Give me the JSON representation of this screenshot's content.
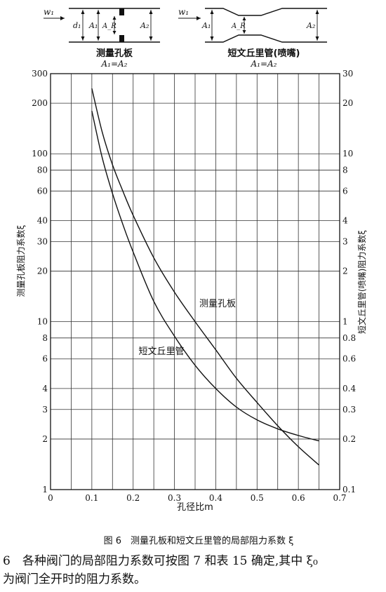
{
  "header": {
    "left_diagram": {
      "flow_label": "w₁",
      "d_label": "d₁",
      "a1_label": "A₁",
      "ar_label": "A_R",
      "a2_label": "A₂",
      "name": "测量孔板",
      "equation": "A₁=A₂"
    },
    "right_diagram": {
      "flow_label": "w₁",
      "a1_label": "A₁",
      "ar_label": "A_R",
      "a2_label": "A₂",
      "name": "短文丘里管(喷嘴)",
      "equation": "A₁=A₂"
    }
  },
  "chart_data": {
    "type": "line",
    "xlabel": "孔径比m",
    "ylabel_left": "测量孔板阻力系数ξ",
    "ylabel_right": "短文丘里管(喷嘴)阻力系数ξ",
    "x_scale": "linear",
    "y_scale": "log",
    "xlim": [
      0,
      0.7
    ],
    "ylim_left": [
      1,
      300
    ],
    "ylim_right": [
      0.1,
      30
    ],
    "x_ticks": [
      "0",
      "0.1",
      "0.2",
      "0.3",
      "0.4",
      "0.5",
      "0.6",
      "0.7"
    ],
    "x_tick_values": [
      0,
      0.1,
      0.2,
      0.3,
      0.4,
      0.5,
      0.6,
      0.7
    ],
    "y_left_ticks": [
      "1",
      "2",
      "3",
      "4",
      "6",
      "8",
      "10",
      "20",
      "30",
      "40",
      "60",
      "80",
      "100",
      "200",
      "300"
    ],
    "y_left_tick_values": [
      1,
      2,
      3,
      4,
      6,
      8,
      10,
      20,
      30,
      40,
      60,
      80,
      100,
      200,
      300
    ],
    "y_right_ticks": [
      "0.1",
      "0.2",
      "0.3",
      "0.4",
      "0.6",
      "0.8",
      "1",
      "2",
      "3",
      "4",
      "6",
      "8",
      "10",
      "20",
      "30"
    ],
    "y_right_tick_values": [
      0.1,
      0.2,
      0.3,
      0.4,
      0.6,
      0.8,
      1,
      2,
      3,
      4,
      6,
      8,
      10,
      20,
      30
    ],
    "grid": true,
    "series": [
      {
        "name": "测量孔板",
        "axis": "left",
        "x": [
          0.1,
          0.125,
          0.15,
          0.175,
          0.2,
          0.25,
          0.3,
          0.35,
          0.4,
          0.45,
          0.5,
          0.55,
          0.6,
          0.65
        ],
        "y": [
          245,
          135,
          86,
          60,
          43,
          24,
          15,
          10,
          6.8,
          4.6,
          3.3,
          2.4,
          1.8,
          1.4
        ]
      },
      {
        "name": "短文丘里管",
        "axis": "right",
        "x": [
          0.1,
          0.125,
          0.15,
          0.175,
          0.2,
          0.25,
          0.3,
          0.35,
          0.4,
          0.45,
          0.5,
          0.55,
          0.6,
          0.65
        ],
        "y": [
          18,
          9.5,
          5.8,
          3.8,
          2.6,
          1.32,
          0.82,
          0.55,
          0.4,
          0.31,
          0.26,
          0.23,
          0.21,
          0.195
        ]
      }
    ],
    "annotations": [
      "测量孔板",
      "短文丘里管"
    ]
  },
  "caption": "图 6　测量孔板和短文丘里管的局部阻力系数 ξ",
  "paragraph": {
    "line1": "6　各种阀门的局部阻力系数可按图 7 和表 15 确定,其中 ξ₀",
    "line2": "为阀门全开时的阻力系数。"
  }
}
